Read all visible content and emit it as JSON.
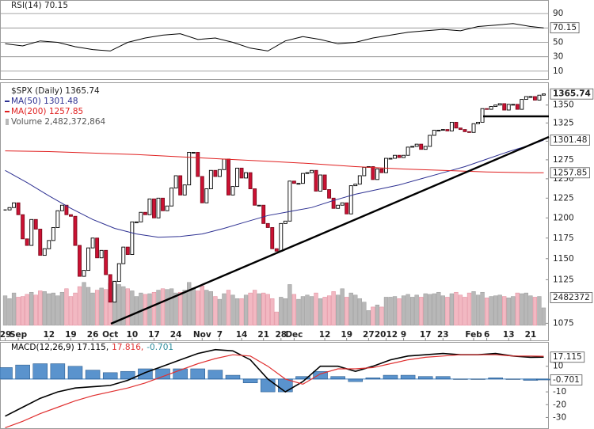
{
  "chart_data": [
    {
      "type": "line",
      "title": "RSI(14) 70.15",
      "x": [
        0,
        4,
        8,
        12,
        16,
        20,
        24,
        28,
        32,
        36,
        40,
        44,
        48,
        52,
        56,
        60,
        64,
        68,
        72,
        76,
        80,
        84,
        88,
        92,
        96,
        100,
        104,
        108,
        112,
        116,
        120,
        123
      ],
      "series": [
        {
          "color": "#000000",
          "values": [
            48,
            45,
            52,
            50,
            44,
            40,
            38,
            50,
            56,
            60,
            62,
            54,
            56,
            50,
            42,
            38,
            52,
            58,
            54,
            48,
            50,
            56,
            60,
            64,
            66,
            68,
            66,
            72,
            74,
            76,
            72,
            70.15
          ]
        }
      ],
      "xlim": [
        -1,
        124
      ],
      "ylim": [
        0,
        100
      ],
      "yticks": [
        10,
        30,
        50,
        70,
        90
      ],
      "grid": true
    },
    {
      "type": "candlestick",
      "title": "$SPX (Daily) 1365.74",
      "log_scale": true,
      "close": [
        1210,
        1213,
        1219,
        1204,
        1174,
        1166,
        1198,
        1186,
        1154,
        1162,
        1172,
        1188,
        1209,
        1216,
        1204,
        1202,
        1166,
        1129,
        1136,
        1163,
        1175,
        1151,
        1160,
        1131,
        1099,
        1123,
        1144,
        1164,
        1155,
        1195,
        1195,
        1207,
        1204,
        1224,
        1200,
        1225,
        1209,
        1215,
        1238,
        1254,
        1229,
        1242,
        1285,
        1285,
        1253,
        1219,
        1237,
        1261,
        1253,
        1262,
        1276,
        1229,
        1240,
        1264,
        1251,
        1258,
        1237,
        1216,
        1216,
        1193,
        1188,
        1162,
        1159,
        1193,
        1196,
        1247,
        1244,
        1244,
        1257,
        1258,
        1261,
        1234,
        1255,
        1236,
        1225,
        1212,
        1216,
        1219,
        1205,
        1241,
        1243,
        1254,
        1265,
        1266,
        1249,
        1263,
        1258,
        1277,
        1277,
        1281,
        1278,
        1281,
        1292,
        1293,
        1296,
        1289,
        1293,
        1308,
        1315,
        1315,
        1316,
        1314,
        1326,
        1318,
        1316,
        1313,
        1312,
        1324,
        1326,
        1345,
        1344,
        1348,
        1350,
        1352,
        1343,
        1351,
        1351,
        1344,
        1358,
        1362,
        1362,
        1357,
        1364,
        1365.74
      ],
      "up_color": "#000000",
      "down_color": "#cc1133",
      "series": [
        {
          "name": "MA(50) 1301.48",
          "color": "#2e3192",
          "x": [
            0,
            5,
            10,
            15,
            20,
            25,
            30,
            35,
            40,
            45,
            50,
            55,
            60,
            65,
            70,
            75,
            80,
            85,
            90,
            95,
            100,
            105,
            110,
            115,
            120,
            123
          ],
          "values": [
            1261,
            1245,
            1228,
            1212,
            1198,
            1187,
            1180,
            1176,
            1177,
            1180,
            1187,
            1195,
            1203,
            1208,
            1213,
            1222,
            1230,
            1236,
            1242,
            1250,
            1258,
            1266,
            1276,
            1286,
            1295,
            1301.48
          ]
        },
        {
          "name": "MA(200) 1257.85",
          "color": "#e02020",
          "x": [
            0,
            10,
            20,
            30,
            40,
            50,
            60,
            70,
            80,
            90,
            100,
            110,
            120,
            123
          ],
          "values": [
            1287,
            1286,
            1284,
            1282,
            1279,
            1276,
            1273,
            1270,
            1266,
            1263,
            1261,
            1259,
            1258,
            1257.85
          ]
        }
      ],
      "volume_name": "Volume 2,482,372,864",
      "volume": [
        4200000,
        3800000,
        4600000,
        4000000,
        4100000,
        4400000,
        4700000,
        4300000,
        4900000,
        4800000,
        4500000,
        4600000,
        4200000,
        4700000,
        5200000,
        4100000,
        4600000,
        5500000,
        6100000,
        5400000,
        4600000,
        5000000,
        5300000,
        5100000,
        6000000,
        6300000,
        5800000,
        5500000,
        5200000,
        4900000,
        4100000,
        4600000,
        4400000,
        4500000,
        4700000,
        5000000,
        5200000,
        5100000,
        5200000,
        4600000,
        4700000,
        5000000,
        6100000,
        5300000,
        4900000,
        5600000,
        5000000,
        4800000,
        4100000,
        3700000,
        4500000,
        5000000,
        4300000,
        3800000,
        3800000,
        4300000,
        4600000,
        5000000,
        4500000,
        4600000,
        4400000,
        3800000,
        1900000,
        4000000,
        3800000,
        5800000,
        4400000,
        3700000,
        4100000,
        4300000,
        4100000,
        4600000,
        3800000,
        4000000,
        4200000,
        4800000,
        4300000,
        5200000,
        4000000,
        4600000,
        4300000,
        3800000,
        3300000,
        2100000,
        2600000,
        2900000,
        2600000,
        4000000,
        4000000,
        4100000,
        3800000,
        4200000,
        4400000,
        4000000,
        4300000,
        4000000,
        4500000,
        4400000,
        4500000,
        4700000,
        4200000,
        4000000,
        4500000,
        4700000,
        4300000,
        4000000,
        4600000,
        4800000,
        4300000,
        4700000,
        3900000,
        4100000,
        4200000,
        4300000,
        4100000,
        3900000,
        4100000,
        4600000,
        4500000,
        4600000,
        4200000,
        4000000,
        4100000,
        2482372
      ],
      "volume_up_color": "#b8b8b8",
      "volume_down_color": "#f2b8c2",
      "xlim": [
        -1,
        124
      ],
      "ylim": [
        1056,
        1379
      ],
      "yticks": [
        1075,
        1125,
        1150,
        1175,
        1200,
        1225,
        1250,
        1275,
        1300,
        1325,
        1350
      ],
      "xticks": [
        {
          "value": 0,
          "label": "29"
        },
        {
          "value": 3,
          "label": "Sep"
        },
        {
          "value": 10,
          "label": "12"
        },
        {
          "value": 15,
          "label": "19"
        },
        {
          "value": 20,
          "label": "26"
        },
        {
          "value": 24,
          "label": "Oct"
        },
        {
          "value": 29,
          "label": "10"
        },
        {
          "value": 34,
          "label": "17"
        },
        {
          "value": 39,
          "label": "24"
        },
        {
          "value": 45,
          "label": "Nov"
        },
        {
          "value": 49,
          "label": "7"
        },
        {
          "value": 54,
          "label": "14"
        },
        {
          "value": 59,
          "label": "21"
        },
        {
          "value": 63,
          "label": "28"
        },
        {
          "value": 66,
          "label": "Dec"
        },
        {
          "value": 73,
          "label": "12"
        },
        {
          "value": 78,
          "label": "19"
        },
        {
          "value": 83,
          "label": "27"
        },
        {
          "value": 87,
          "label": "2012"
        },
        {
          "value": 91,
          "label": "9"
        },
        {
          "value": 96,
          "label": "17"
        },
        {
          "value": 100,
          "label": "23"
        },
        {
          "value": 107,
          "label": "Feb"
        },
        {
          "value": 110,
          "label": "6"
        },
        {
          "value": 115,
          "label": "13"
        },
        {
          "value": 120,
          "label": "21"
        }
      ],
      "grid": false
    },
    {
      "type": "macd",
      "x": [
        0,
        4,
        8,
        12,
        16,
        20,
        24,
        28,
        32,
        36,
        40,
        44,
        48,
        52,
        56,
        60,
        64,
        68,
        72,
        76,
        80,
        84,
        88,
        92,
        96,
        100,
        104,
        108,
        112,
        116,
        120,
        123
      ],
      "series": [
        {
          "name": "MACD(12,26,9) 17.115,",
          "color": "#000000",
          "values": [
            -29,
            -22,
            -15,
            -10,
            -7,
            -6,
            -5,
            -1,
            5,
            10,
            15,
            20,
            23,
            22,
            15,
            0,
            -10,
            -2,
            10,
            10,
            6,
            10,
            15,
            18,
            19,
            20,
            19,
            19,
            20,
            18,
            17,
            17.115
          ]
        },
        {
          "name": "17.816,",
          "color": "#e03030",
          "values": [
            -38,
            -33,
            -27,
            -22,
            -17,
            -13,
            -10,
            -7,
            -3,
            2,
            7,
            12,
            16,
            19,
            18,
            10,
            0,
            -4,
            4,
            8,
            8,
            9,
            12,
            15,
            17,
            18,
            19,
            19,
            19,
            18,
            18,
            17.816
          ]
        },
        {
          "name": "-0.701",
          "color": "#3d80c4",
          "kind": "bar",
          "values": [
            9,
            11,
            12,
            12,
            10,
            7,
            5,
            6,
            8,
            8,
            8,
            8,
            7,
            3,
            -3,
            -10,
            -10,
            2,
            6,
            2,
            -2,
            1,
            3,
            3,
            2,
            2,
            0,
            0,
            1,
            0,
            -1,
            -0.701
          ]
        }
      ],
      "xlim": [
        -1,
        124
      ],
      "ylim": [
        -39,
        29
      ],
      "yticks": [
        -30,
        -20,
        -10,
        10
      ],
      "grid": false
    }
  ]
}
